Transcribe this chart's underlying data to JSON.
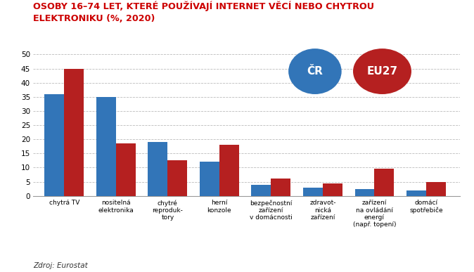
{
  "title_line1": "OSOBY 16–74 LET, KTERÉ POUŽÍVAJÍ INTERNET VĚCÍ NEBO CHYTROU",
  "title_line2": "ELEKTRONIKU (%, 2020)",
  "categories": [
    "chytrá TV",
    "nositelná\nelektronika",
    "chytré\nreproduk-\ntory",
    "herní\nkonzole",
    "bezpečnostní\nzařízení\nv domácnosti",
    "zdravot-\nnická\nzařízení",
    "zařízení\nna ovládání\nenergí\n(např. topení)",
    "domácí\nspotřebiče"
  ],
  "cr_values": [
    36,
    35,
    19,
    12,
    4,
    3,
    2.5,
    2
  ],
  "eu27_values": [
    45,
    18.5,
    12.5,
    18,
    6,
    4.5,
    9.5,
    5
  ],
  "cr_color": "#3275b8",
  "eu27_color": "#b52020",
  "ylim": [
    0,
    50
  ],
  "yticks": [
    0,
    5,
    10,
    15,
    20,
    25,
    30,
    35,
    40,
    45,
    50
  ],
  "source": "Zdroj: Eurostat",
  "background_color": "#ffffff",
  "grid_color": "#bbbbbb",
  "title_color": "#cc0000",
  "cr_label": "ČR",
  "eu27_label": "EU27"
}
